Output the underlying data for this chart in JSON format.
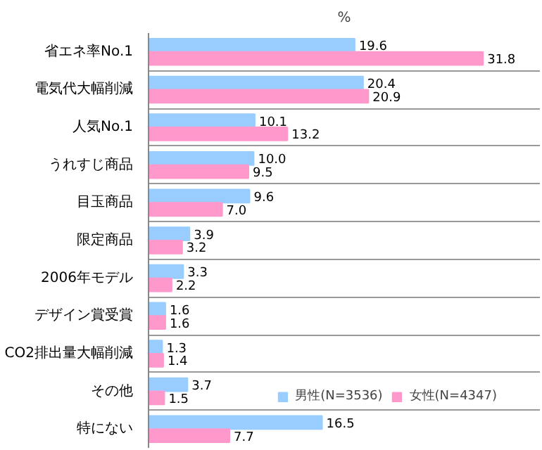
{
  "chart_data": {
    "type": "bar",
    "orientation": "horizontal",
    "xlabel": "%",
    "categories": [
      "省エネ率No.1",
      "電気代大幅削減",
      "人気No.1",
      "うれすじ商品",
      "目玉商品",
      "限定商品",
      "2006年モデル",
      "デザイン賞受賞",
      "CO2排出量大幅削減",
      "その他",
      "特にない"
    ],
    "series": [
      {
        "name": "男性(N=3536)",
        "color": "#99ccff",
        "values": [
          19.6,
          20.4,
          10.1,
          10.0,
          9.6,
          3.9,
          3.3,
          1.6,
          1.3,
          3.7,
          16.5
        ],
        "value_labels": [
          "19.6",
          "20.4",
          "10.1",
          "10.0",
          "9.6",
          "3.9",
          "3.3",
          "1.6",
          "1.3",
          "3.7",
          "16.5"
        ]
      },
      {
        "name": "女性(N=4347)",
        "color": "#ff99cc",
        "values": [
          31.8,
          20.9,
          13.2,
          9.5,
          7.0,
          3.2,
          2.2,
          1.6,
          1.4,
          1.5,
          7.7
        ],
        "value_labels": [
          "31.8",
          "20.9",
          "13.2",
          "9.5",
          "7.0",
          "3.2",
          "2.2",
          "1.6",
          "1.4",
          "1.5",
          "7.7"
        ]
      }
    ],
    "grid": "y",
    "legend": "bottom right"
  }
}
